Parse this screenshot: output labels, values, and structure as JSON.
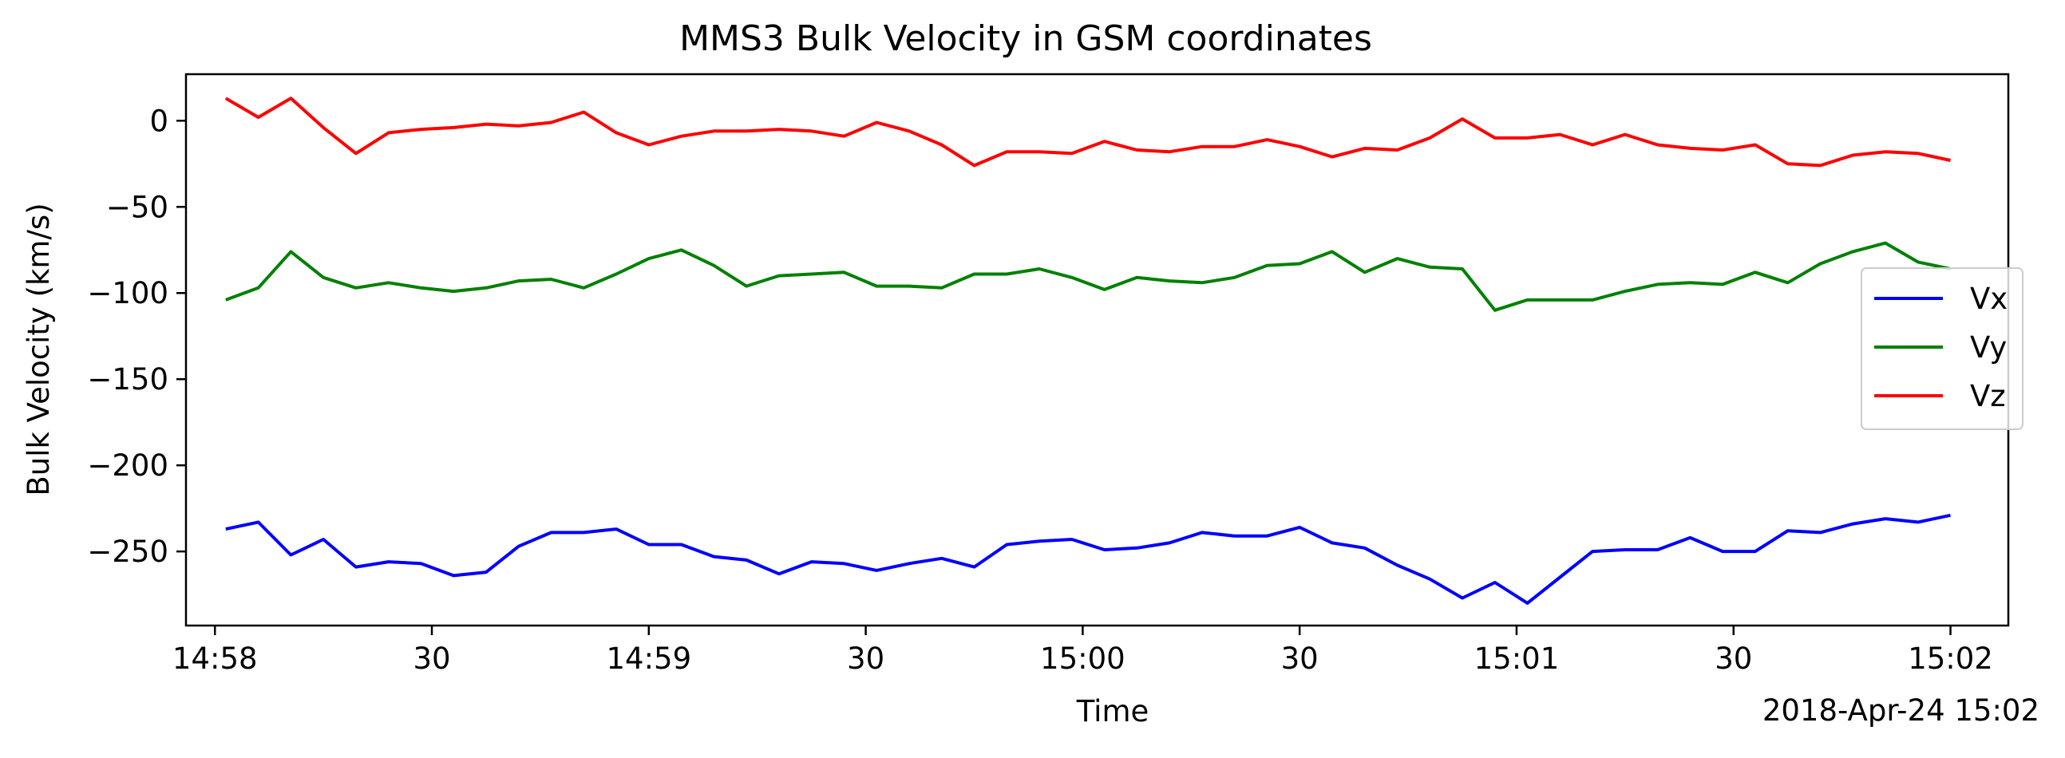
{
  "chart_data": {
    "type": "line",
    "title": "MMS3 Bulk Velocity in GSM coordinates",
    "xlabel": "Time",
    "ylabel": "Bulk Velocity (km/s)",
    "date_label": "2018-Apr-24 15:02",
    "xlim": [
      "14:57:56",
      "15:02:08"
    ],
    "ylim": [
      -293,
      27
    ],
    "x_ticks": [
      {
        "time": "14:58:00",
        "label": "14:58"
      },
      {
        "time": "14:58:30",
        "label": "30"
      },
      {
        "time": "14:59:00",
        "label": "14:59"
      },
      {
        "time": "14:59:30",
        "label": "30"
      },
      {
        "time": "15:00:00",
        "label": "15:00"
      },
      {
        "time": "15:00:30",
        "label": "30"
      },
      {
        "time": "15:01:00",
        "label": "15:01"
      },
      {
        "time": "15:01:30",
        "label": "30"
      },
      {
        "time": "15:02:00",
        "label": "15:02"
      }
    ],
    "y_ticks": [
      {
        "value": 0,
        "label": "0"
      },
      {
        "value": -50,
        "label": "−50"
      },
      {
        "value": -100,
        "label": "−100"
      },
      {
        "value": -150,
        "label": "−150"
      },
      {
        "value": -200,
        "label": "−200"
      },
      {
        "value": -250,
        "label": "−250"
      }
    ],
    "grid": false,
    "legend_position": "right",
    "x": [
      "14:58:01.5",
      "14:58:06.0",
      "14:58:10.5",
      "14:58:15.0",
      "14:58:19.5",
      "14:58:24.0",
      "14:58:28.5",
      "14:58:33.0",
      "14:58:37.5",
      "14:58:42.0",
      "14:58:46.5",
      "14:58:51.0",
      "14:58:55.5",
      "14:59:00.0",
      "14:59:04.5",
      "14:59:09.0",
      "14:59:13.5",
      "14:59:18.0",
      "14:59:22.5",
      "14:59:27.0",
      "14:59:31.5",
      "14:59:36.0",
      "14:59:40.5",
      "14:59:45.0",
      "14:59:49.5",
      "14:59:54.0",
      "14:59:58.5",
      "15:00:03.0",
      "15:00:07.5",
      "15:00:12.0",
      "15:00:16.5",
      "15:00:21.0",
      "15:00:25.5",
      "15:00:30.0",
      "15:00:34.5",
      "15:00:39.0",
      "15:00:43.5",
      "15:00:48.0",
      "15:00:52.5",
      "15:00:57.0",
      "15:01:01.5",
      "15:01:06.0",
      "15:01:10.5",
      "15:01:15.0",
      "15:01:19.5",
      "15:01:24.0",
      "15:01:28.5",
      "15:01:33.0",
      "15:01:37.5",
      "15:01:42.0",
      "15:01:46.5",
      "15:01:51.0",
      "15:01:55.5",
      "15:02:00.0"
    ],
    "series": [
      {
        "name": "Vx",
        "color": "#0000ff",
        "values": [
          -237,
          -233,
          -252,
          -243,
          -259,
          -256,
          -257,
          -264,
          -262,
          -247,
          -239,
          -239,
          -237,
          -246,
          -246,
          -253,
          -255,
          -263,
          -256,
          -257,
          -261,
          -257,
          -254,
          -259,
          -246,
          -244,
          -243,
          -249,
          -248,
          -245,
          -239,
          -241,
          -241,
          -236,
          -245,
          -248,
          -258,
          -266,
          -277,
          -268,
          -280,
          -265,
          -250,
          -249,
          -249,
          -242,
          -250,
          -250,
          -238,
          -239,
          -234,
          -231,
          -233,
          -229
        ]
      },
      {
        "name": "Vy",
        "color": "#008000",
        "values": [
          -104,
          -97,
          -76,
          -91,
          -97,
          -94,
          -97,
          -99,
          -97,
          -93,
          -92,
          -97,
          -89,
          -80,
          -75,
          -84,
          -96,
          -90,
          -89,
          -88,
          -96,
          -96,
          -97,
          -89,
          -89,
          -86,
          -91,
          -98,
          -91,
          -93,
          -94,
          -91,
          -84,
          -83,
          -76,
          -88,
          -80,
          -85,
          -86,
          -110,
          -104,
          -104,
          -104,
          -99,
          -95,
          -94,
          -95,
          -88,
          -94,
          -83,
          -76,
          -71,
          -82,
          -86
        ]
      },
      {
        "name": "Vz",
        "color": "#ff0000",
        "values": [
          13,
          2,
          13,
          -4,
          -19,
          -7,
          -5,
          -4,
          -2,
          -3,
          -1,
          5,
          -7,
          -14,
          -9,
          -6,
          -6,
          -5,
          -6,
          -9,
          -1,
          -6,
          -14,
          -26,
          -18,
          -18,
          -19,
          -12,
          -17,
          -18,
          -15,
          -15,
          -11,
          -15,
          -21,
          -16,
          -17,
          -10,
          1,
          -10,
          -10,
          -8,
          -14,
          -8,
          -14,
          -16,
          -17,
          -14,
          -25,
          -26,
          -20,
          -18,
          -19,
          -23
        ]
      }
    ]
  }
}
